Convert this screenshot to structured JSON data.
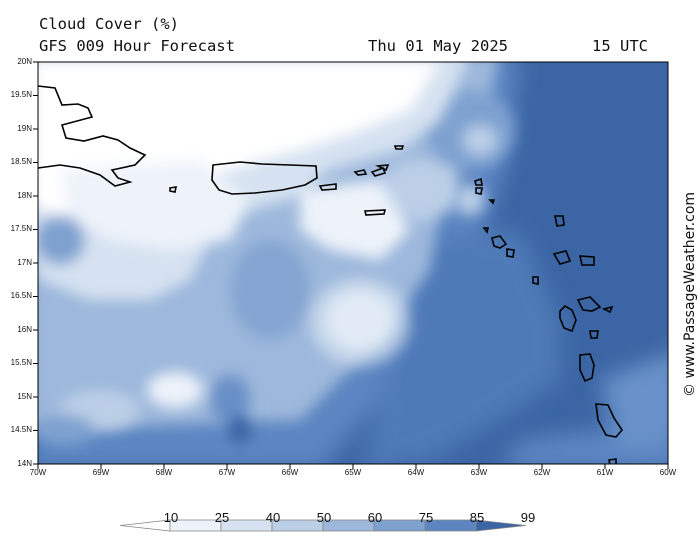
{
  "header": {
    "title": "Cloud Cover (%)",
    "model": "GFS 009 Hour Forecast",
    "date": "Thu 01 May 2025",
    "time": "15 UTC"
  },
  "credit": "© www.PassageWeather.com",
  "latitude_labels": [
    "20N",
    "19.5N",
    "19N",
    "18.5N",
    "18N",
    "17.5N",
    "17N",
    "16.5N",
    "16N",
    "15.5N",
    "15N",
    "14.5N",
    "14N"
  ],
  "longitude_labels": [
    "70W",
    "69W",
    "68W",
    "67W",
    "66W",
    "65W",
    "64W",
    "63W",
    "62W",
    "61W",
    "60W"
  ],
  "colorbar": {
    "labels": [
      "10",
      "25",
      "40",
      "50",
      "60",
      "75",
      "85",
      "99"
    ],
    "colors": [
      "#ffffff",
      "#eef3fa",
      "#d6e2f1",
      "#bccfe7",
      "#9db8dc",
      "#7ea1d0",
      "#5b86c2",
      "#3b65a4"
    ]
  },
  "map": {
    "projection": "lat-lon",
    "lat_range": [
      14,
      20
    ],
    "lon_range": [
      -70,
      -60
    ],
    "ocean_base_color": "#3b65a4",
    "coastline_color": "#000000"
  }
}
